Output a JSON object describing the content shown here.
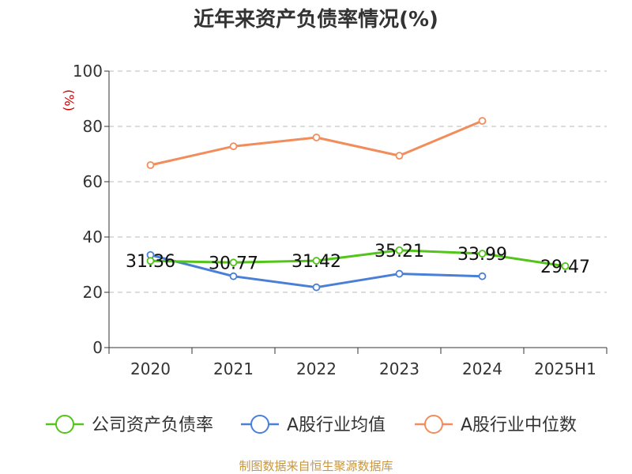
{
  "chart_data": {
    "type": "line",
    "title": "近年来资产负债率情况(%)",
    "ylabel": "(%)",
    "xlabel": "",
    "categories": [
      "2020",
      "2021",
      "2022",
      "2023",
      "2024",
      "2025H1"
    ],
    "ylim": [
      0,
      100
    ],
    "yticks": [
      0,
      20,
      40,
      60,
      80,
      100
    ],
    "grid": true,
    "legend_position": "bottom",
    "series": [
      {
        "name": "公司资产负债率",
        "color": "#52c41a",
        "values": [
          31.36,
          30.77,
          31.42,
          35.21,
          33.99,
          29.47
        ],
        "labels": [
          "31.36",
          "30.77",
          "31.42",
          "35.21",
          "33.99",
          "29.47"
        ]
      },
      {
        "name": "A股行业均值",
        "color": "#4a7fd8",
        "values": [
          33.5,
          25.8,
          21.8,
          26.7,
          25.8,
          null
        ]
      },
      {
        "name": "A股行业中位数",
        "color": "#f28c5a",
        "values": [
          66.0,
          72.8,
          76.0,
          69.4,
          82.0,
          null
        ]
      }
    ]
  },
  "source": "制图数据来自恒生聚源数据库"
}
